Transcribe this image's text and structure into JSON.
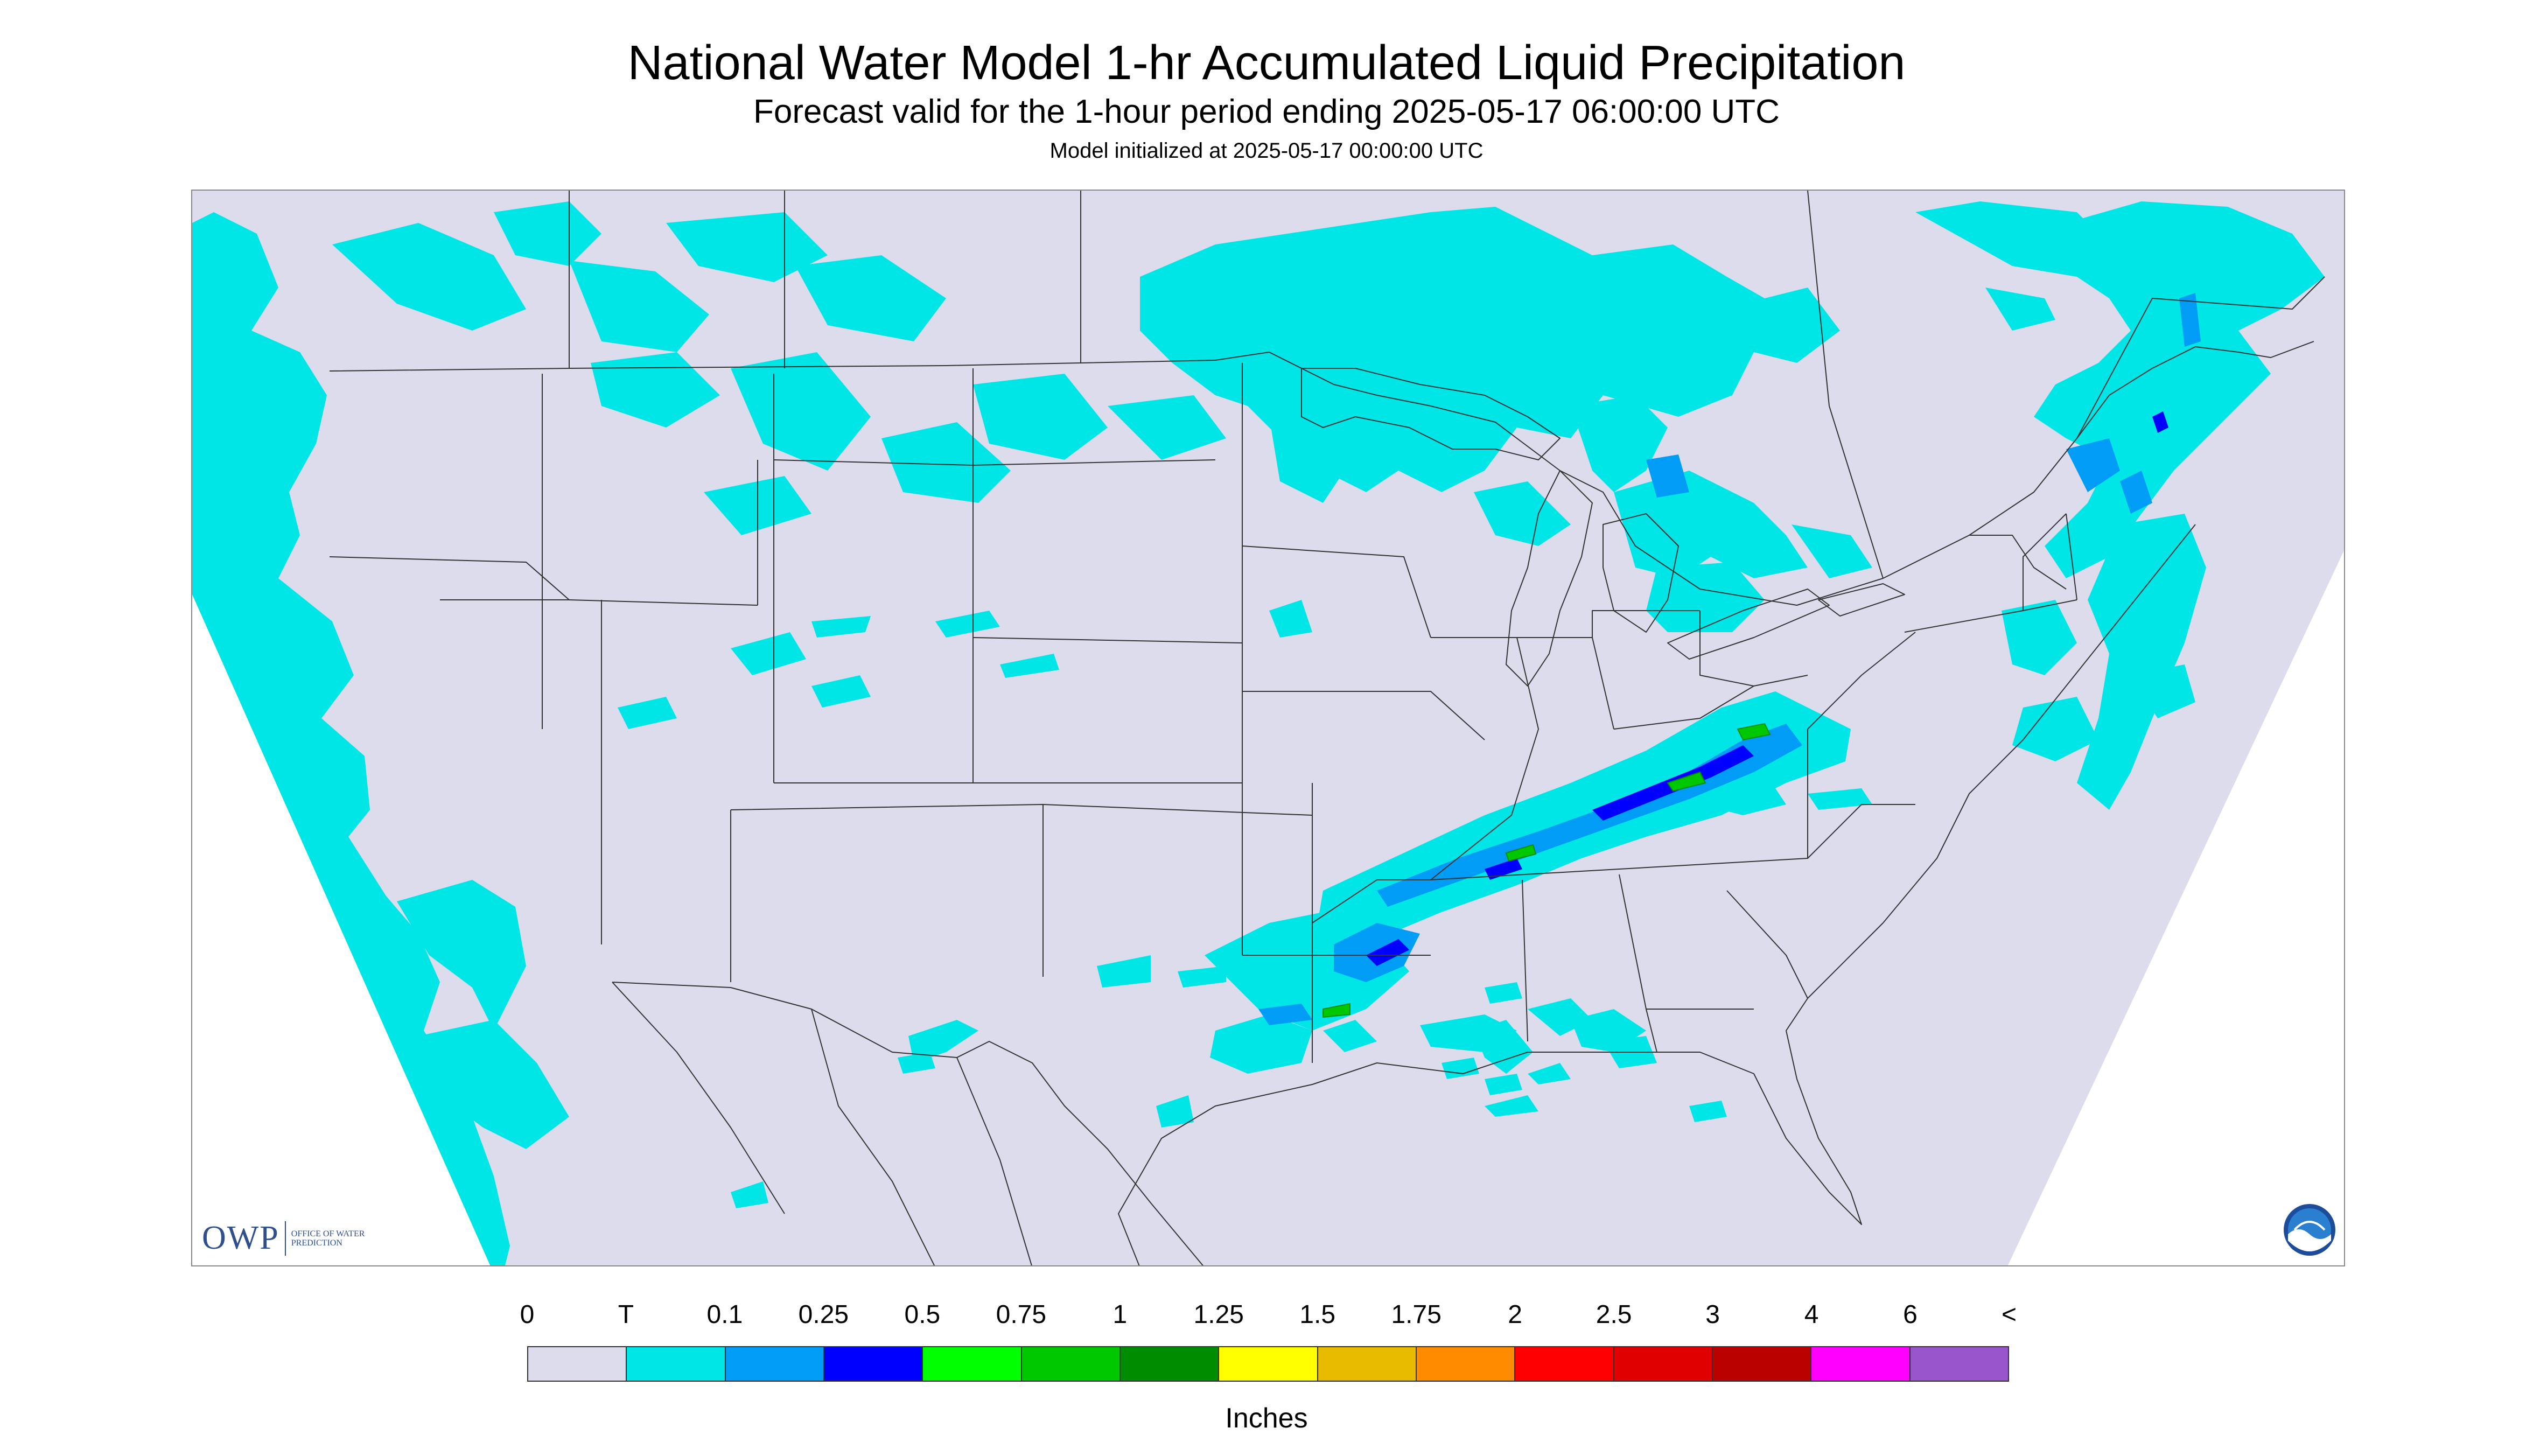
{
  "header": {
    "title": "National Water Model 1-hr Accumulated Liquid Precipitation",
    "subtitle": "Forecast valid for the 1-hour period ending 2025-05-17 06:00:00 UTC",
    "init_note": "Model initialized at 2025-05-17 00:00:00 UTC"
  },
  "map": {
    "background_color": "#dcdced",
    "outside_domain_color": "#ffffff",
    "boundary_color": "#333333"
  },
  "logos": {
    "owp_abbrev": "OWP",
    "owp_full": "OFFICE OF WATER PREDICTION",
    "noaa_name": "NOAA"
  },
  "legend": {
    "tick_labels": [
      "0",
      "T",
      "0.1",
      "0.25",
      "0.5",
      "0.75",
      "1",
      "1.25",
      "1.5",
      "1.75",
      "2",
      "2.5",
      "3",
      "4",
      "6",
      "<"
    ],
    "colors": [
      "#dcdced",
      "#00e5e5",
      "#009cf5",
      "#0000ff",
      "#00ff00",
      "#00c800",
      "#008c00",
      "#ffff00",
      "#e6bb00",
      "#ff8c00",
      "#ff0000",
      "#e00000",
      "#bb0000",
      "#ff00ff",
      "#9955cc"
    ],
    "units": "Inches"
  }
}
